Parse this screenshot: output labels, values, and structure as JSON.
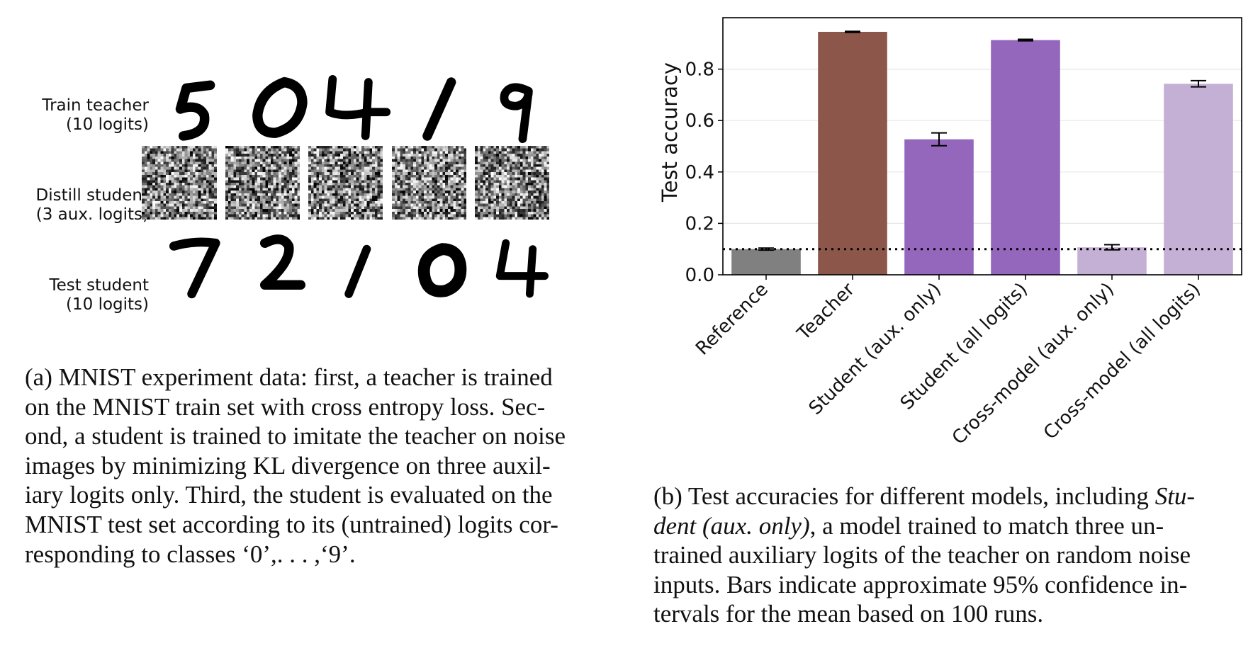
{
  "panel_a": {
    "rows": [
      {
        "label_line1": "Train teacher",
        "label_line2": "(10 logits)",
        "kind": "digits",
        "digits": [
          "5",
          "0",
          "4",
          "1",
          "9"
        ]
      },
      {
        "label_line1": "Distill student",
        "label_line2": "(3 aux. logits)",
        "kind": "noise"
      },
      {
        "label_line1": "Test student",
        "label_line2": "(10 logits)",
        "kind": "digits",
        "digits": [
          "7",
          "2",
          "1",
          "0",
          "4"
        ]
      }
    ],
    "caption_lines": [
      "(a) MNIST experiment data: first, a teacher is trained",
      "on the MNIST train set with cross entropy loss. Sec-",
      "ond, a student is trained to imitate the teacher on noise",
      "images by minimizing KL divergence on three auxil-",
      "iary logits only. Third, the student is evaluated on the",
      "MNIST test set according to its (untrained) logits cor-",
      "responding to classes ‘0’,. . . ,‘9’."
    ]
  },
  "panel_b": {
    "caption": {
      "line1_a": "(b) Test accuracies for different models, including ",
      "line1_b": "Stu-",
      "line2_a": "dent (aux. only)",
      "line2_b": ", a model trained to match three un-",
      "line3": "trained auxiliary logits of the teacher on random noise",
      "line4": "inputs. Bars indicate approximate 95% confidence in-",
      "line5": "tervals for the mean based on 100 runs."
    }
  },
  "chart_data": {
    "type": "bar",
    "categories": [
      "Reference",
      "Teacher",
      "Student (aux. only)",
      "Student (all logits)",
      "Cross-model (aux. only)",
      "Cross-model (all logits)"
    ],
    "values": [
      0.1,
      0.945,
      0.527,
      0.913,
      0.107,
      0.743
    ],
    "errors": [
      0.004,
      0.002,
      0.025,
      0.003,
      0.01,
      0.012
    ],
    "colors": [
      "#808080",
      "#8c564b",
      "#9467bd",
      "#9467bd",
      "#c5b0d5",
      "#c5b0d5"
    ],
    "error_color": "#000000",
    "reference_line": 0.1,
    "ylabel": "Test accuracy",
    "ylim": [
      0.0,
      1.0
    ],
    "yticks": [
      0.0,
      0.2,
      0.4,
      0.6,
      0.8
    ],
    "ytick_labels": [
      "0.0",
      "0.2",
      "0.4",
      "0.6",
      "0.8"
    ],
    "grid": "horizontal",
    "xtick_rotation": 45
  }
}
